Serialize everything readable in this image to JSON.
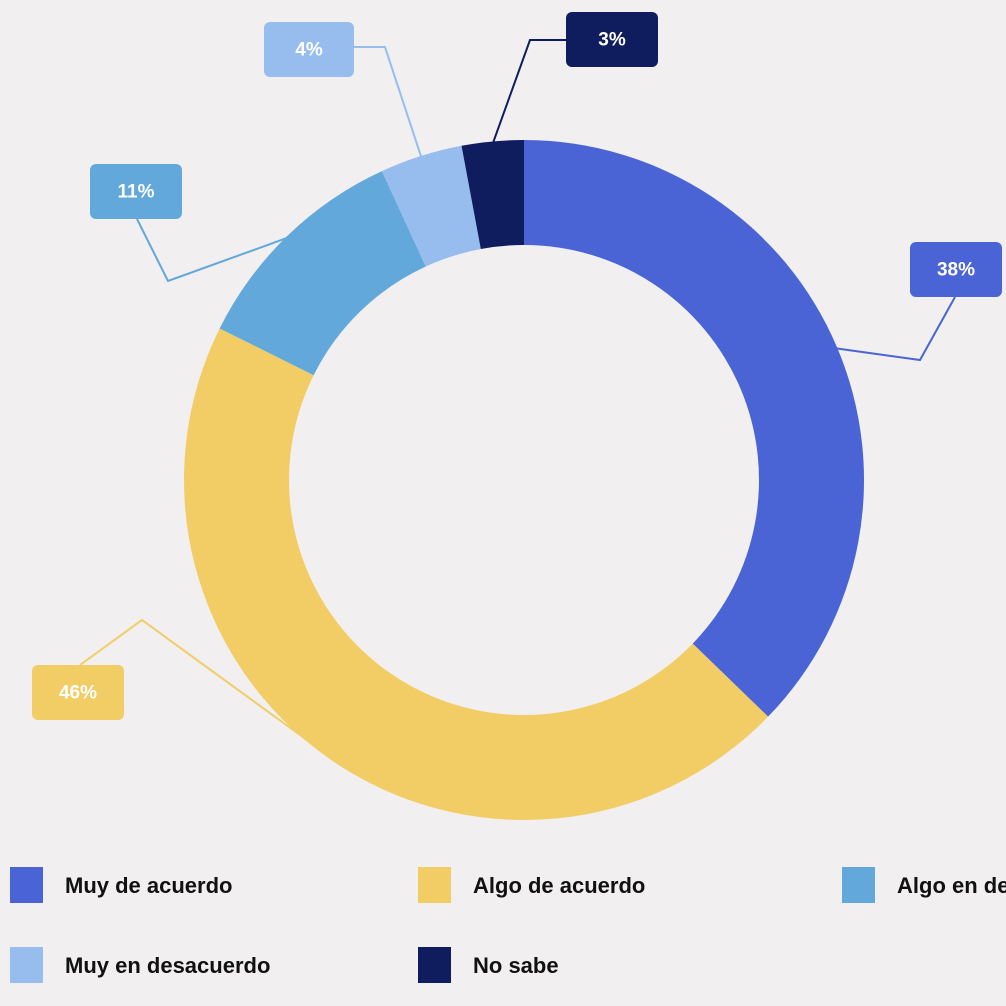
{
  "chart_data": {
    "type": "pie",
    "donut": true,
    "categories": [
      "Muy de acuerdo",
      "Algo de acuerdo",
      "Algo en desacuerdo",
      "Muy en desacuerdo",
      "No sabe"
    ],
    "values": [
      38,
      46,
      11,
      4,
      3
    ],
    "value_labels": [
      "38%",
      "46%",
      "11%",
      "4%",
      "3%"
    ],
    "colors": [
      "#4a64d6",
      "#f2cd66",
      "#62a8da",
      "#96bdee",
      "#0f1c5e"
    ]
  }
}
